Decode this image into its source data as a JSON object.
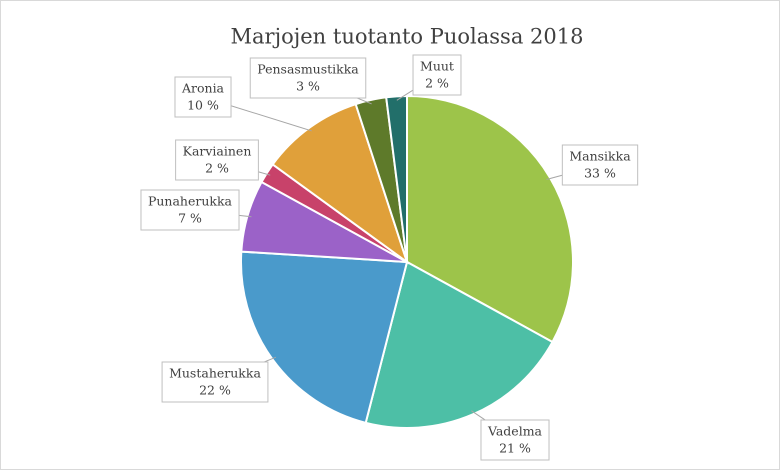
{
  "chart_data": {
    "type": "pie",
    "title": "Marjojen tuotanto Puolassa 2018",
    "categories": [
      "Mansikka",
      "Vadelma",
      "Mustaherukka",
      "Punaherukka",
      "Karviainen",
      "Aronia",
      "Pensasmustikka",
      "Muut"
    ],
    "values": [
      33,
      21,
      22,
      7,
      2,
      10,
      3,
      2
    ],
    "value_labels": [
      "33 %",
      "21 %",
      "22 %",
      "7 %",
      "2 %",
      "10 %",
      "3 %",
      "2 %"
    ],
    "colors": [
      "#9dc44a",
      "#4dbfa6",
      "#4a9acb",
      "#9b62c8",
      "#c8426a",
      "#e0a03a",
      "#5e7a2a",
      "#226f6a"
    ]
  }
}
